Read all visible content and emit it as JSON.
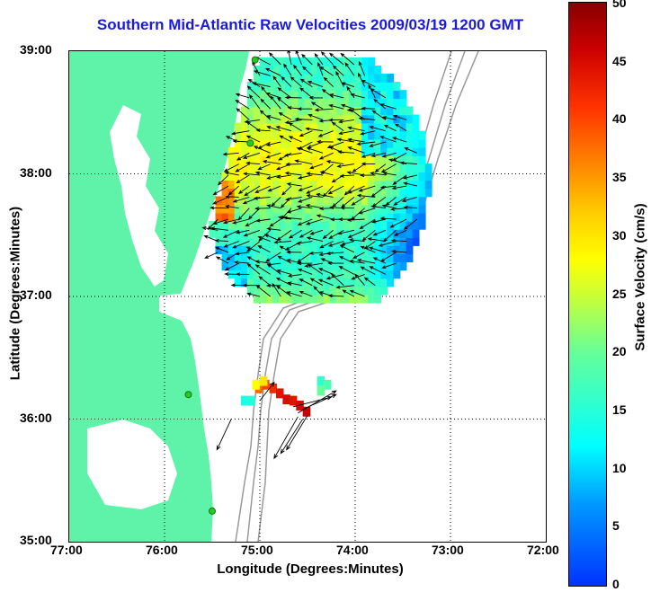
{
  "chart_data": {
    "type": "heatmap",
    "title": "Southern Mid-Atlantic Raw Velocities 2009/03/19 1200 GMT",
    "xlabel": "Longitude (Degrees:Minutes)",
    "ylabel": "Latitude (Degrees:Minutes)",
    "x_ticks": [
      "77:00",
      "76:00",
      "75:00",
      "74:00",
      "73:00",
      "72:00"
    ],
    "y_ticks": [
      "39:00",
      "38:00",
      "37:00",
      "36:00",
      "35:00"
    ],
    "xlim": [
      -77,
      -72
    ],
    "ylim": [
      35,
      39
    ],
    "grid": true,
    "colorbar": {
      "label": "Surface Velocity (cm/s)",
      "ticks": [
        "50",
        "45",
        "40",
        "35",
        "30",
        "25",
        "20",
        "15",
        "10",
        "5",
        "0"
      ],
      "range": [
        0,
        50
      ]
    },
    "regions": [
      {
        "lon": [
          -75.6,
          -73.25
        ],
        "lat": [
          36.95,
          38.95
        ],
        "speed_cm_s": [
          5,
          36
        ]
      },
      {
        "lon": [
          -75.2,
          -74.2
        ],
        "lat": [
          35.9,
          36.35
        ],
        "speed_cm_s": [
          15,
          45
        ]
      }
    ]
  },
  "colors": {
    "land": "#5ef3a8",
    "title": "#1a1adf",
    "bathymetry": "#999999"
  }
}
